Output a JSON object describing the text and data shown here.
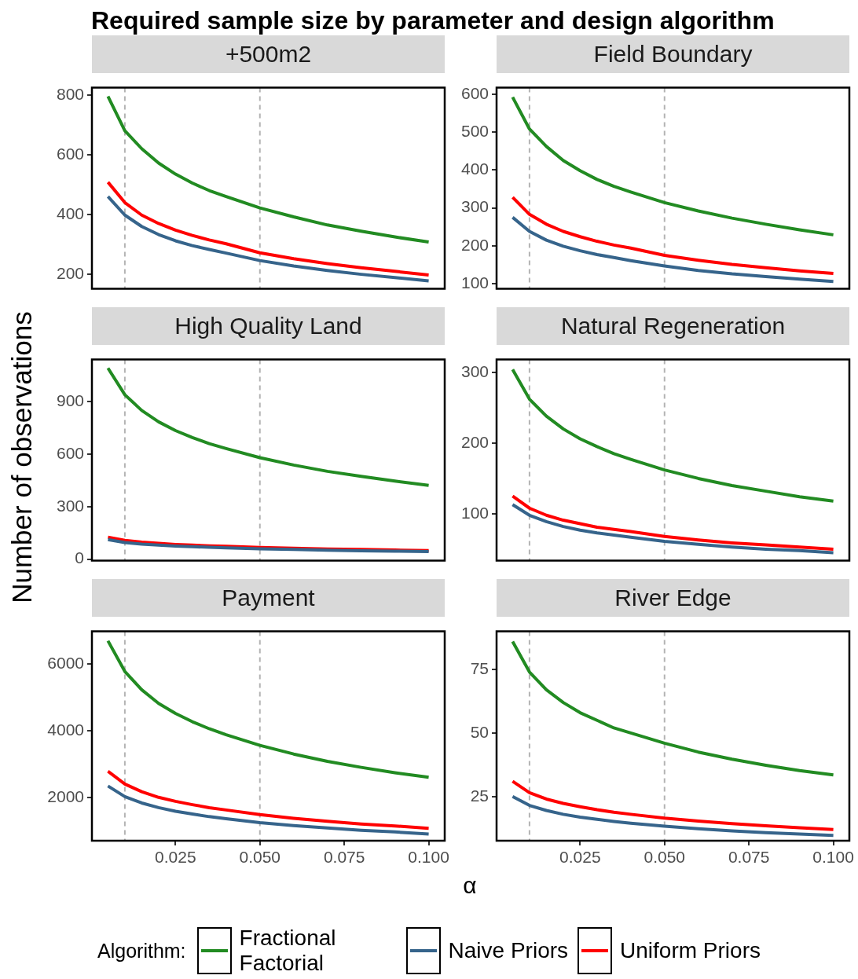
{
  "chart_data": [
    {
      "type": "line",
      "title": "Required sample size by parameter and design algorithm",
      "subtitle": "+500m2",
      "legend": "bottom",
      "legend_title": "Algorithm:",
      "x": [
        0.005,
        0.01,
        0.015,
        0.02,
        0.025,
        0.03,
        0.035,
        0.04,
        0.05,
        0.06,
        0.07,
        0.08,
        0.09,
        0.1
      ],
      "xlim": [
        0.00025,
        0.10475
      ],
      "ylim": [
        152,
        824
      ],
      "yticks": [
        200,
        400,
        600,
        800
      ],
      "tick_labels": "y",
      "grid": false,
      "ref_lines": [
        {
          "axis": "x",
          "value": 0.01,
          "color": "#b3b3b3",
          "line_style": "dashed"
        },
        {
          "axis": "x",
          "value": 0.05,
          "color": "#b3b3b3",
          "line_style": "dashed"
        }
      ],
      "series": [
        {
          "name": "Fractional Factorial",
          "color": "#228b22",
          "values": [
            795,
            680,
            620,
            572,
            535,
            505,
            480,
            460,
            422,
            392,
            365,
            344,
            325,
            308
          ]
        },
        {
          "name": "Naive Priors",
          "color": "#36648b",
          "values": [
            460,
            398,
            360,
            333,
            312,
            296,
            283,
            271,
            246,
            228,
            213,
            200,
            189,
            178
          ]
        },
        {
          "name": "Uniform Priors",
          "color": "#ff0000",
          "values": [
            508,
            440,
            398,
            370,
            348,
            330,
            315,
            302,
            272,
            252,
            236,
            222,
            210,
            198
          ]
        }
      ]
    },
    {
      "type": "line",
      "subtitle": "Field Boundary",
      "x": [
        0.005,
        0.01,
        0.015,
        0.02,
        0.025,
        0.03,
        0.035,
        0.04,
        0.05,
        0.06,
        0.07,
        0.08,
        0.09,
        0.1
      ],
      "xlim": [
        0.00025,
        0.10475
      ],
      "ylim": [
        87,
        617
      ],
      "yticks": [
        100,
        200,
        300,
        400,
        500,
        600
      ],
      "tick_labels": "y",
      "grid": false,
      "ref_lines": [
        {
          "axis": "x",
          "value": 0.01,
          "color": "#b3b3b3",
          "line_style": "dashed"
        },
        {
          "axis": "x",
          "value": 0.05,
          "color": "#b3b3b3",
          "line_style": "dashed"
        }
      ],
      "series": [
        {
          "color": "#228b22",
          "values": [
            592,
            508,
            462,
            425,
            398,
            375,
            357,
            342,
            314,
            292,
            273,
            257,
            242,
            229
          ]
        },
        {
          "color": "#36648b",
          "values": [
            275,
            238,
            215,
            199,
            187,
            177,
            169,
            161,
            147,
            135,
            126,
            119,
            112,
            106
          ]
        },
        {
          "color": "#ff0000",
          "values": [
            328,
            283,
            257,
            238,
            224,
            212,
            202,
            194,
            175,
            162,
            151,
            142,
            134,
            127
          ]
        }
      ]
    },
    {
      "type": "line",
      "subtitle": "High Quality Land",
      "ylabel": "Number of observations",
      "x": [
        0.005,
        0.01,
        0.015,
        0.02,
        0.025,
        0.03,
        0.035,
        0.04,
        0.05,
        0.06,
        0.07,
        0.08,
        0.09,
        0.1
      ],
      "xlim": [
        0.00025,
        0.10475
      ],
      "ylim": [
        -8,
        1141
      ],
      "yticks": [
        0,
        300,
        600,
        900
      ],
      "tick_labels": "y",
      "grid": false,
      "ref_lines": [
        {
          "axis": "x",
          "value": 0.01,
          "color": "#b3b3b3",
          "line_style": "dashed"
        },
        {
          "axis": "x",
          "value": 0.05,
          "color": "#b3b3b3",
          "line_style": "dashed"
        }
      ],
      "series": [
        {
          "color": "#228b22",
          "values": [
            1092,
            940,
            850,
            785,
            735,
            695,
            660,
            632,
            580,
            538,
            502,
            473,
            446,
            422
          ]
        },
        {
          "color": "#36648b",
          "values": [
            112,
            95,
            86,
            80,
            75,
            71,
            68,
            65,
            59,
            55,
            51,
            48,
            46,
            43
          ]
        },
        {
          "color": "#ff0000",
          "values": [
            125,
            107,
            97,
            90,
            84,
            80,
            76,
            73,
            67,
            62,
            58,
            55,
            52,
            49
          ]
        }
      ]
    },
    {
      "type": "line",
      "subtitle": "Natural Regeneration",
      "x": [
        0.005,
        0.01,
        0.015,
        0.02,
        0.025,
        0.03,
        0.035,
        0.04,
        0.05,
        0.06,
        0.07,
        0.08,
        0.09,
        0.1
      ],
      "xlim": [
        0.00025,
        0.10475
      ],
      "ylim": [
        34,
        318
      ],
      "yticks": [
        100,
        200,
        300
      ],
      "tick_labels": "y",
      "grid": false,
      "ref_lines": [
        {
          "axis": "x",
          "value": 0.01,
          "color": "#b3b3b3",
          "line_style": "dashed"
        },
        {
          "axis": "x",
          "value": 0.05,
          "color": "#b3b3b3",
          "line_style": "dashed"
        }
      ],
      "series": [
        {
          "color": "#228b22",
          "values": [
            304,
            262,
            238,
            220,
            206,
            195,
            185,
            177,
            162,
            150,
            140,
            132,
            124,
            118
          ]
        },
        {
          "color": "#36648b",
          "values": [
            113,
            98,
            89,
            82,
            77,
            73,
            70,
            67,
            61,
            57,
            53,
            50,
            48,
            45
          ]
        },
        {
          "color": "#ff0000",
          "values": [
            125,
            108,
            98,
            91,
            86,
            81,
            78,
            75,
            68,
            63,
            59,
            56,
            53,
            50
          ]
        }
      ]
    },
    {
      "type": "line",
      "subtitle": "Payment",
      "xlabel": "α",
      "x": [
        0.005,
        0.01,
        0.015,
        0.02,
        0.025,
        0.03,
        0.035,
        0.04,
        0.05,
        0.06,
        0.07,
        0.08,
        0.09,
        0.1
      ],
      "xlim": [
        0.00025,
        0.10475
      ],
      "xticks": [
        {
          "value": 0.025,
          "label": "0.025"
        },
        {
          "value": 0.05,
          "label": "0.050"
        },
        {
          "value": 0.075,
          "label": "0.075"
        },
        {
          "value": 0.1,
          "label": "0.100"
        }
      ],
      "ylim": [
        697,
        6983
      ],
      "yticks": [
        2000,
        4000,
        6000
      ],
      "grid": false,
      "ref_lines": [
        {
          "axis": "x",
          "value": 0.01,
          "color": "#b3b3b3",
          "line_style": "dashed"
        },
        {
          "axis": "x",
          "value": 0.05,
          "color": "#b3b3b3",
          "line_style": "dashed"
        }
      ],
      "series": [
        {
          "color": "#228b22",
          "values": [
            6700,
            5780,
            5230,
            4820,
            4520,
            4270,
            4060,
            3880,
            3560,
            3300,
            3080,
            2900,
            2740,
            2600
          ]
        },
        {
          "color": "#36648b",
          "values": [
            2340,
            2020,
            1830,
            1690,
            1580,
            1500,
            1420,
            1360,
            1240,
            1150,
            1080,
            1010,
            960,
            900
          ]
        },
        {
          "color": "#ff0000",
          "values": [
            2780,
            2400,
            2170,
            2000,
            1880,
            1780,
            1690,
            1620,
            1480,
            1370,
            1280,
            1200,
            1140,
            1070
          ]
        }
      ]
    },
    {
      "type": "line",
      "subtitle": "River Edge",
      "x": [
        0.005,
        0.01,
        0.015,
        0.02,
        0.025,
        0.03,
        0.035,
        0.04,
        0.05,
        0.06,
        0.07,
        0.08,
        0.09,
        0.1
      ],
      "xlim": [
        0.00025,
        0.10475
      ],
      "xticks": [
        {
          "value": 0.025,
          "label": "0.025"
        },
        {
          "value": 0.05,
          "label": "0.050"
        },
        {
          "value": 0.075,
          "label": "0.075"
        },
        {
          "value": 0.1,
          "label": "0.100"
        }
      ],
      "ylim": [
        7.6,
        90
      ],
      "yticks": [
        25,
        50,
        75
      ],
      "grid": false,
      "ref_lines": [
        {
          "axis": "x",
          "value": 0.01,
          "color": "#b3b3b3",
          "line_style": "dashed"
        },
        {
          "axis": "x",
          "value": 0.05,
          "color": "#b3b3b3",
          "line_style": "dashed"
        }
      ],
      "series": [
        {
          "color": "#228b22",
          "values": [
            86,
            74,
            67,
            62,
            58,
            55,
            52,
            50,
            46,
            42.5,
            39.7,
            37.3,
            35.2,
            33.5
          ]
        },
        {
          "color": "#36648b",
          "values": [
            25,
            21.5,
            19.5,
            18,
            16.9,
            16,
            15.2,
            14.5,
            13.3,
            12.3,
            11.5,
            10.8,
            10.2,
            9.7
          ]
        },
        {
          "color": "#ff0000",
          "values": [
            31,
            26.5,
            24,
            22.3,
            21,
            19.8,
            18.8,
            18,
            16.5,
            15.3,
            14.3,
            13.5,
            12.7,
            12
          ]
        }
      ]
    }
  ]
}
